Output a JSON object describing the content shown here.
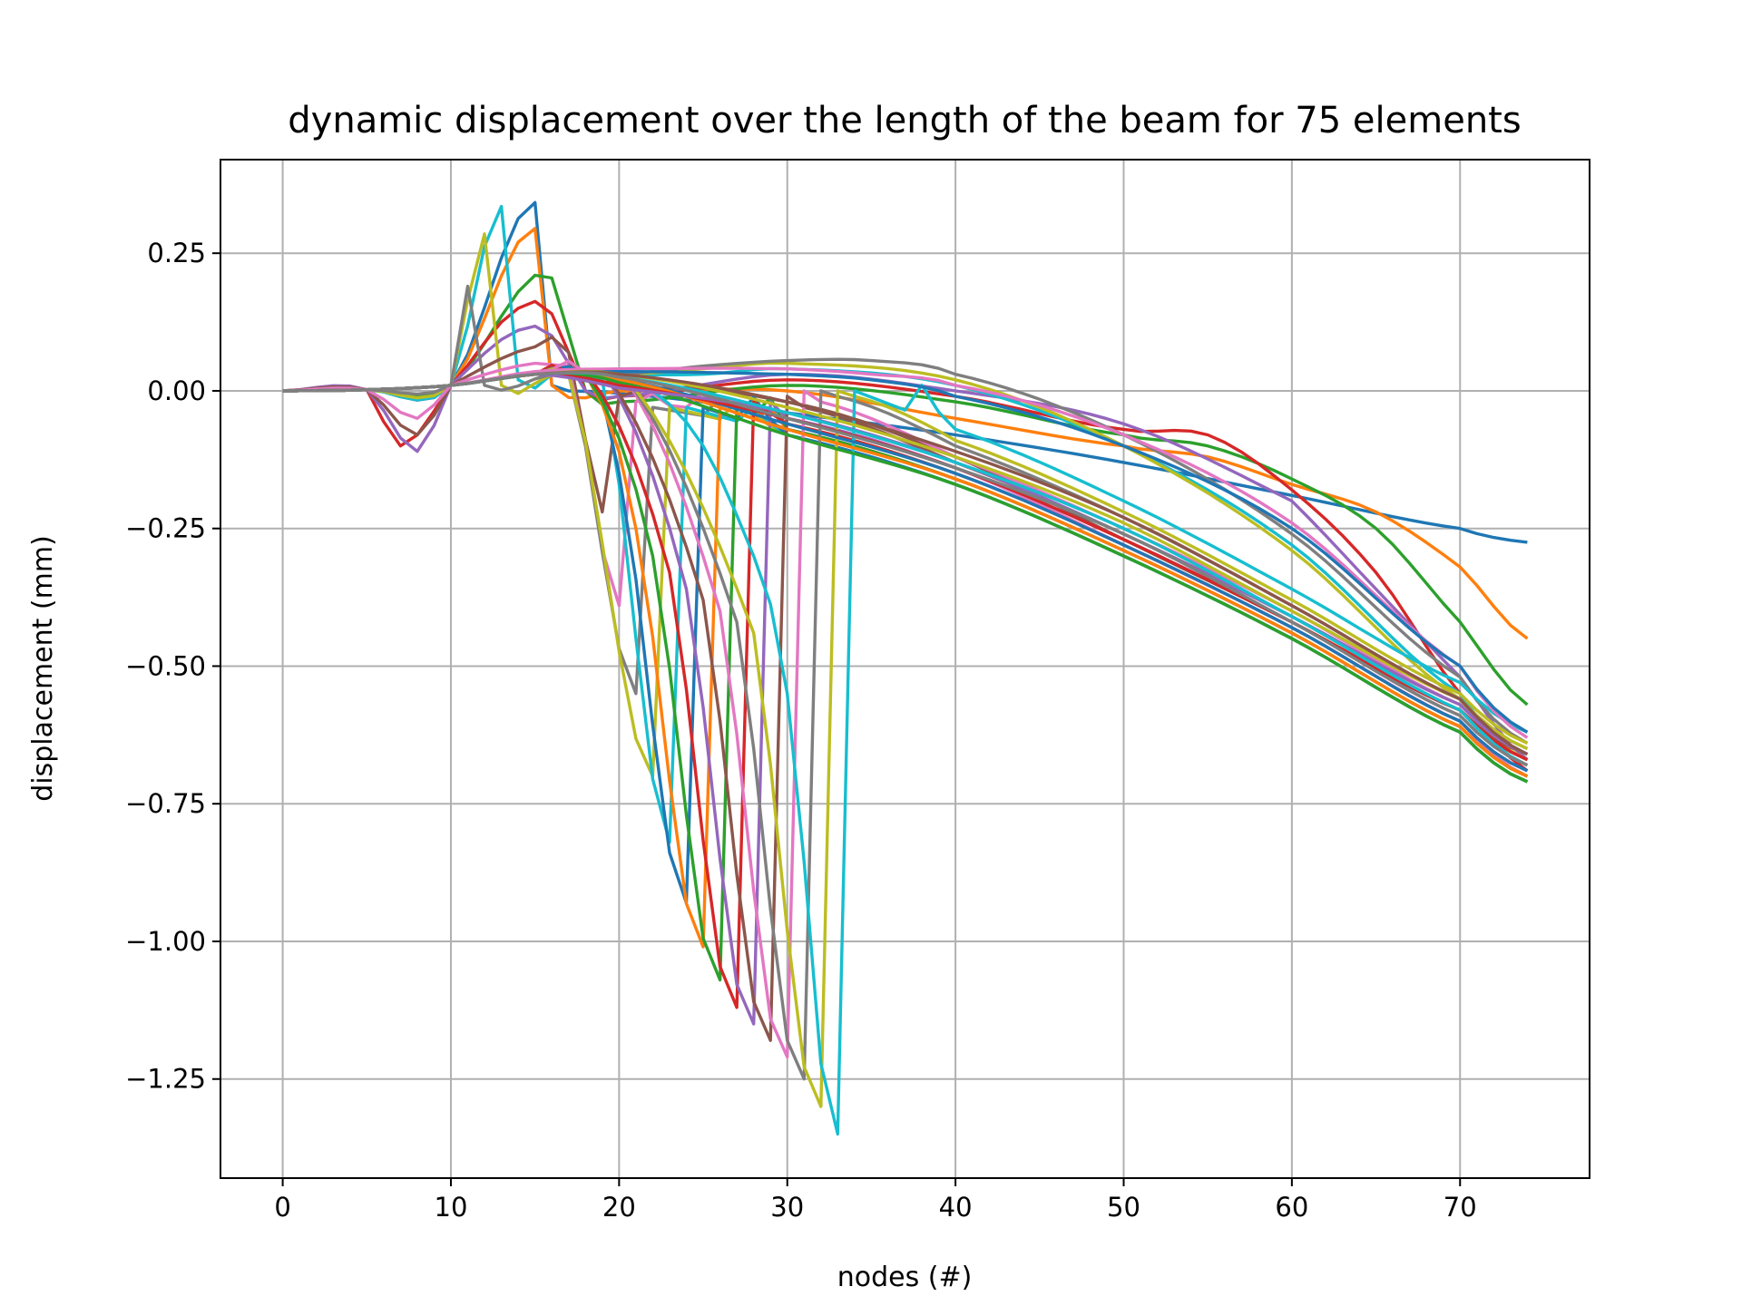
{
  "chart_data": {
    "type": "line",
    "title": "dynamic displacement over the length of the beam  for 75 elements",
    "xlabel": "nodes (#)",
    "ylabel": "displacement (mm)",
    "xlim": [
      -3.7,
      77.7
    ],
    "ylim": [
      -1.43,
      0.42
    ],
    "xticks": [
      0,
      10,
      20,
      30,
      40,
      50,
      60,
      70
    ],
    "xtick_labels": [
      "0",
      "10",
      "20",
      "30",
      "40",
      "50",
      "60",
      "70"
    ],
    "yticks": [
      0.25,
      0.0,
      -0.25,
      -0.5,
      -0.75,
      -1.0,
      -1.25
    ],
    "ytick_labels": [
      "0.25",
      "0.00",
      "−0.25",
      "−0.50",
      "−0.75",
      "−1.00",
      "−1.25"
    ],
    "grid": true,
    "legend": "none",
    "palette": [
      "#1f77b4",
      "#ff7f0e",
      "#2ca02c",
      "#d62728",
      "#9467bd",
      "#8c564b",
      "#e377c2",
      "#7f7f7f",
      "#bcbd22",
      "#17becf"
    ],
    "node_range": [
      0,
      74
    ],
    "curve_count": 34,
    "series": [
      {
        "color": "#1f77b4",
        "x": [
          0,
          5,
          10,
          15,
          16,
          17,
          20,
          30,
          40,
          50,
          60,
          70,
          74
        ],
        "y": [
          0,
          0.002,
          0.01,
          0.342,
          0.01,
          0.0,
          -0.005,
          -0.04,
          -0.08,
          -0.13,
          -0.19,
          -0.25,
          -0.275
        ]
      },
      {
        "color": "#ff7f0e",
        "x": [
          0,
          5,
          10,
          15,
          16,
          20,
          30,
          40,
          50,
          55,
          60,
          65,
          70,
          74
        ],
        "y": [
          0,
          0.002,
          0.01,
          0.295,
          0.01,
          0.0,
          0.0,
          -0.05,
          -0.1,
          -0.12,
          -0.17,
          -0.22,
          -0.32,
          -0.45
        ]
      },
      {
        "color": "#2ca02c",
        "x": [
          0,
          5,
          10,
          15,
          16,
          18,
          20,
          30,
          40,
          50,
          55,
          60,
          65,
          70,
          74
        ],
        "y": [
          0,
          0.002,
          0.01,
          0.21,
          0.205,
          0.0,
          -0.02,
          0.01,
          -0.02,
          -0.08,
          -0.1,
          -0.16,
          -0.25,
          -0.42,
          -0.57
        ]
      },
      {
        "color": "#d62728",
        "x": [
          0,
          5,
          7,
          10,
          14,
          16,
          18,
          20,
          30,
          40,
          50,
          55,
          60,
          65,
          70,
          74
        ],
        "y": [
          0,
          0.002,
          -0.1,
          0.01,
          0.15,
          0.14,
          0.0,
          -0.01,
          0.02,
          -0.01,
          -0.07,
          -0.08,
          -0.18,
          -0.33,
          -0.55,
          -0.69
        ]
      },
      {
        "color": "#9467bd",
        "x": [
          0,
          5,
          8,
          10,
          14,
          16,
          18,
          20,
          30,
          40,
          50,
          60,
          65,
          70,
          74
        ],
        "y": [
          0,
          0.002,
          -0.11,
          0.01,
          0.11,
          0.1,
          0.0,
          -0.01,
          0.03,
          0.0,
          -0.06,
          -0.2,
          -0.36,
          -0.52,
          -0.67
        ]
      },
      {
        "color": "#17becf",
        "x": [
          0,
          5,
          10,
          13,
          14,
          16,
          18,
          20,
          25,
          30,
          40,
          50,
          60,
          70,
          74
        ],
        "y": [
          0,
          0.002,
          0.01,
          0.335,
          0.02,
          0.03,
          0.035,
          0.03,
          0.03,
          0.04,
          0.01,
          -0.1,
          -0.28,
          -0.55,
          -0.66
        ]
      },
      {
        "color": "#bcbd22",
        "x": [
          0,
          5,
          10,
          12,
          13,
          16,
          18,
          20,
          25,
          30,
          40,
          50,
          60,
          70,
          74
        ],
        "y": [
          0,
          0.002,
          0.01,
          0.285,
          0.01,
          0.03,
          0.035,
          0.03,
          0.04,
          0.05,
          0.02,
          -0.1,
          -0.29,
          -0.56,
          -0.67
        ]
      },
      {
        "color": "#7f7f7f",
        "x": [
          0,
          5,
          10,
          11,
          12,
          16,
          18,
          20,
          25,
          30,
          35,
          40,
          50,
          60,
          70,
          74
        ],
        "y": [
          0,
          0.002,
          0.01,
          0.19,
          0.01,
          0.03,
          0.03,
          0.03,
          0.045,
          0.055,
          0.055,
          0.03,
          -0.08,
          -0.26,
          -0.52,
          -0.64
        ]
      },
      {
        "color": "#8c564b",
        "x": [
          0,
          5,
          8,
          10,
          15,
          17,
          19,
          20,
          30,
          40,
          50,
          60,
          70,
          74
        ],
        "y": [
          0,
          0.002,
          -0.08,
          0.01,
          0.08,
          0.07,
          -0.22,
          -0.01,
          -0.02,
          -0.12,
          -0.27,
          -0.42,
          -0.58,
          -0.66
        ]
      },
      {
        "color": "#e377c2",
        "x": [
          0,
          5,
          8,
          10,
          15,
          17,
          20,
          21,
          30,
          40,
          50,
          60,
          70,
          74
        ],
        "y": [
          0,
          0.002,
          -0.05,
          0.01,
          0.05,
          0.045,
          -0.39,
          -0.02,
          -0.05,
          -0.14,
          -0.28,
          -0.43,
          -0.6,
          -0.7
        ]
      },
      {
        "color": "#7f7f7f",
        "x": [
          0,
          5,
          10,
          15,
          17,
          21,
          22,
          30,
          40,
          50,
          60,
          70,
          74
        ],
        "y": [
          0,
          0.002,
          0.01,
          0.03,
          0.03,
          -0.55,
          -0.03,
          -0.07,
          -0.16,
          -0.29,
          -0.44,
          -0.61,
          -0.7
        ]
      },
      {
        "color": "#bcbd22",
        "x": [
          0,
          5,
          10,
          15,
          17,
          22,
          23,
          30,
          40,
          50,
          60,
          70,
          74
        ],
        "y": [
          0,
          0.002,
          0.01,
          0.03,
          0.03,
          -0.7,
          -0.03,
          -0.08,
          -0.17,
          -0.3,
          -0.45,
          -0.62,
          -0.71
        ]
      },
      {
        "color": "#17becf",
        "x": [
          0,
          5,
          10,
          15,
          17,
          19,
          23,
          24,
          30,
          40,
          50,
          60,
          70,
          74
        ],
        "y": [
          0,
          0.002,
          0.01,
          0.03,
          0.03,
          0.02,
          -0.82,
          -0.03,
          -0.08,
          -0.17,
          -0.3,
          -0.45,
          -0.62,
          -0.71
        ]
      },
      {
        "color": "#1f77b4",
        "x": [
          0,
          5,
          10,
          15,
          18,
          20,
          24,
          25,
          30,
          40,
          50,
          60,
          70,
          74
        ],
        "y": [
          0,
          0.002,
          0.01,
          0.03,
          0.03,
          -0.15,
          -0.93,
          -0.03,
          -0.08,
          -0.17,
          -0.3,
          -0.45,
          -0.62,
          -0.71
        ]
      },
      {
        "color": "#ff7f0e",
        "x": [
          0,
          5,
          10,
          15,
          18,
          21,
          25,
          26,
          30,
          40,
          50,
          60,
          70,
          74
        ],
        "y": [
          0,
          0.002,
          0.01,
          0.03,
          0.03,
          -0.25,
          -1.01,
          -0.03,
          -0.07,
          -0.16,
          -0.29,
          -0.44,
          -0.61,
          -0.7
        ]
      },
      {
        "color": "#2ca02c",
        "x": [
          0,
          5,
          10,
          15,
          18,
          22,
          26,
          27,
          30,
          40,
          50,
          60,
          70,
          74
        ],
        "y": [
          0,
          0.002,
          0.01,
          0.03,
          0.03,
          -0.3,
          -1.07,
          -0.03,
          -0.07,
          -0.16,
          -0.29,
          -0.44,
          -0.61,
          -0.7
        ]
      },
      {
        "color": "#d62728",
        "x": [
          0,
          5,
          10,
          15,
          18,
          23,
          27,
          28,
          30,
          40,
          50,
          60,
          70,
          74
        ],
        "y": [
          0,
          0.002,
          0.01,
          0.03,
          0.035,
          -0.33,
          -1.12,
          -0.02,
          -0.06,
          -0.15,
          -0.28,
          -0.43,
          -0.6,
          -0.69
        ]
      },
      {
        "color": "#9467bd",
        "x": [
          0,
          5,
          10,
          15,
          19,
          24,
          28,
          29,
          30,
          40,
          50,
          60,
          70,
          74
        ],
        "y": [
          0,
          0.002,
          0.01,
          0.03,
          0.035,
          -0.36,
          -1.15,
          -0.02,
          -0.05,
          -0.14,
          -0.27,
          -0.42,
          -0.59,
          -0.68
        ]
      },
      {
        "color": "#8c564b",
        "x": [
          0,
          5,
          10,
          15,
          19,
          25,
          29,
          30,
          31,
          40,
          50,
          60,
          70,
          74
        ],
        "y": [
          0,
          0.002,
          0.01,
          0.03,
          0.035,
          -0.38,
          -1.18,
          -0.01,
          -0.03,
          -0.13,
          -0.26,
          -0.41,
          -0.58,
          -0.67
        ]
      },
      {
        "color": "#e377c2",
        "x": [
          0,
          5,
          10,
          15,
          20,
          26,
          30,
          31,
          32,
          40,
          50,
          60,
          70,
          74
        ],
        "y": [
          0,
          0.002,
          0.01,
          0.03,
          0.035,
          -0.4,
          -1.21,
          0.0,
          -0.02,
          -0.12,
          -0.25,
          -0.4,
          -0.57,
          -0.66
        ]
      },
      {
        "color": "#7f7f7f",
        "x": [
          0,
          5,
          10,
          15,
          20,
          27,
          31,
          32,
          33,
          40,
          50,
          60,
          70,
          74
        ],
        "y": [
          0,
          0.002,
          0.01,
          0.03,
          0.035,
          -0.42,
          -1.25,
          0.0,
          -0.01,
          -0.1,
          -0.23,
          -0.39,
          -0.56,
          -0.65
        ]
      },
      {
        "color": "#bcbd22",
        "x": [
          0,
          5,
          10,
          15,
          20,
          28,
          32,
          33,
          34,
          40,
          50,
          60,
          70,
          74
        ],
        "y": [
          0,
          0.002,
          0.01,
          0.03,
          0.035,
          -0.44,
          -1.3,
          0.0,
          -0.01,
          -0.09,
          -0.22,
          -0.38,
          -0.55,
          -0.64
        ]
      },
      {
        "color": "#17becf",
        "x": [
          0,
          5,
          10,
          15,
          20,
          22,
          25,
          28,
          30,
          33,
          34,
          40,
          50,
          60,
          70,
          74
        ],
        "y": [
          0,
          0.002,
          0.01,
          0.03,
          0.035,
          0.0,
          -0.1,
          -0.3,
          -0.55,
          -1.35,
          0.0,
          -0.07,
          -0.2,
          -0.36,
          -0.53,
          -0.62
        ]
      },
      {
        "color": "#1f77b4",
        "x": [
          0,
          5,
          10,
          15,
          20,
          30,
          40,
          50,
          60,
          70,
          74
        ],
        "y": [
          0,
          0.002,
          0.01,
          0.03,
          0.02,
          -0.06,
          -0.15,
          -0.28,
          -0.43,
          -0.6,
          -0.69
        ]
      },
      {
        "color": "#ff7f0e",
        "x": [
          0,
          5,
          10,
          15,
          20,
          30,
          40,
          50,
          60,
          70,
          74
        ],
        "y": [
          0,
          0.002,
          0.01,
          0.03,
          0.02,
          -0.07,
          -0.16,
          -0.29,
          -0.44,
          -0.61,
          -0.7
        ]
      },
      {
        "color": "#2ca02c",
        "x": [
          0,
          5,
          10,
          15,
          20,
          30,
          40,
          50,
          60,
          70,
          74
        ],
        "y": [
          0,
          0.002,
          0.01,
          0.03,
          0.015,
          -0.08,
          -0.17,
          -0.3,
          -0.45,
          -0.62,
          -0.71
        ]
      },
      {
        "color": "#d62728",
        "x": [
          0,
          5,
          10,
          15,
          20,
          30,
          40,
          50,
          60,
          70,
          74
        ],
        "y": [
          0,
          0.002,
          0.01,
          0.03,
          0.01,
          -0.05,
          -0.14,
          -0.27,
          -0.42,
          -0.58,
          -0.67
        ]
      },
      {
        "color": "#9467bd",
        "x": [
          0,
          5,
          10,
          15,
          20,
          30,
          40,
          50,
          60,
          70,
          74
        ],
        "y": [
          0,
          0.002,
          0.01,
          0.03,
          0.005,
          -0.04,
          -0.13,
          -0.26,
          -0.41,
          -0.57,
          -0.66
        ]
      },
      {
        "color": "#e377c2",
        "x": [
          0,
          5,
          10,
          15,
          20,
          30,
          35,
          40,
          50,
          60,
          70,
          74
        ],
        "y": [
          0,
          0.002,
          0.01,
          0.035,
          0.04,
          0.04,
          0.03,
          0.01,
          -0.08,
          -0.24,
          -0.5,
          -0.63
        ]
      },
      {
        "color": "#1f77b4",
        "x": [
          0,
          5,
          10,
          15,
          20,
          30,
          35,
          40,
          50,
          60,
          70,
          74
        ],
        "y": [
          0,
          0.002,
          0.01,
          0.03,
          0.035,
          0.03,
          0.02,
          -0.01,
          -0.1,
          -0.25,
          -0.5,
          -0.62
        ]
      },
      {
        "color": "#bcbd22",
        "x": [
          0,
          5,
          10,
          15,
          20,
          30,
          40,
          50,
          60,
          70,
          74
        ],
        "y": [
          0,
          0.002,
          0.01,
          0.03,
          0.03,
          -0.03,
          -0.12,
          -0.24,
          -0.4,
          -0.56,
          -0.65
        ]
      },
      {
        "color": "#17becf",
        "x": [
          0,
          5,
          10,
          15,
          20,
          30,
          40,
          50,
          60,
          70,
          74
        ],
        "y": [
          0,
          0.002,
          0.01,
          0.03,
          0.025,
          -0.04,
          -0.13,
          -0.25,
          -0.41,
          -0.58,
          -0.68
        ]
      },
      {
        "color": "#8c564b",
        "x": [
          0,
          5,
          10,
          15,
          20,
          30,
          40,
          50,
          60,
          70,
          74
        ],
        "y": [
          0,
          0.002,
          0.01,
          0.03,
          0.03,
          -0.02,
          -0.11,
          -0.23,
          -0.39,
          -0.56,
          -0.66
        ]
      },
      {
        "color": "#7f7f7f",
        "x": [
          0,
          5,
          10,
          15,
          20,
          30,
          40,
          50,
          60,
          70,
          74
        ],
        "y": [
          0,
          0.002,
          0.01,
          0.03,
          0.025,
          -0.05,
          -0.14,
          -0.26,
          -0.42,
          -0.59,
          -0.68
        ]
      }
    ]
  }
}
